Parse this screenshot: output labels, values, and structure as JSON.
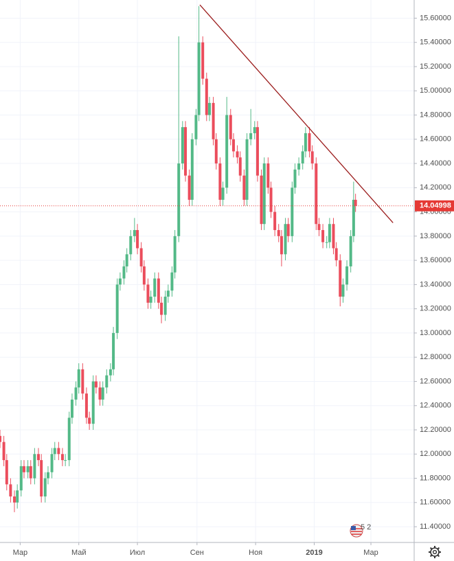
{
  "chart_data": {
    "type": "candlestick",
    "x": [
      -21,
      -17,
      -14,
      -10,
      -6,
      -3,
      1,
      4,
      8,
      11,
      15,
      19,
      22,
      26,
      29,
      33,
      36,
      40,
      44,
      47,
      51,
      54,
      58,
      61,
      65,
      69,
      72,
      76,
      79,
      83,
      86,
      90,
      94,
      97,
      101,
      104,
      108,
      111,
      115,
      119,
      122,
      126,
      129,
      133,
      136,
      140,
      144,
      147,
      151,
      154,
      158,
      161,
      165,
      169,
      172,
      176,
      179,
      183,
      186,
      190,
      194,
      197,
      201,
      204,
      208,
      211,
      215,
      219,
      222,
      226,
      229,
      233,
      236,
      240,
      244,
      247,
      251,
      254,
      258,
      261,
      265,
      269,
      272,
      276,
      279,
      283,
      286,
      290,
      294,
      297,
      301,
      304,
      308,
      311,
      315,
      319,
      322,
      326,
      329,
      333,
      336,
      340,
      344,
      347,
      349
    ],
    "open": [
      12.15,
      12.1,
      11.95,
      11.75,
      11.65,
      11.6,
      11.7,
      11.9,
      11.85,
      11.9,
      11.8,
      12.0,
      11.95,
      11.65,
      11.8,
      11.85,
      12.0,
      12.05,
      12.0,
      11.95,
      11.95,
      12.3,
      12.45,
      12.55,
      12.7,
      12.5,
      12.3,
      12.25,
      12.6,
      12.55,
      12.45,
      12.55,
      12.65,
      12.7,
      13.0,
      13.4,
      13.45,
      13.55,
      13.65,
      13.8,
      13.85,
      13.7,
      13.55,
      13.4,
      13.25,
      13.3,
      13.45,
      13.25,
      13.15,
      13.3,
      13.35,
      13.5,
      13.8,
      14.4,
      14.7,
      14.3,
      14.1,
      14.6,
      14.8,
      15.4,
      15.1,
      14.8,
      14.9,
      14.6,
      14.4,
      14.1,
      14.2,
      14.8,
      14.6,
      14.5,
      14.45,
      14.3,
      14.1,
      14.6,
      14.65,
      14.7,
      14.3,
      13.9,
      14.4,
      14.2,
      14.0,
      13.85,
      13.8,
      13.65,
      13.9,
      13.8,
      14.2,
      14.35,
      14.4,
      14.5,
      14.65,
      14.5,
      14.4,
      13.9,
      13.85,
      13.75,
      13.75,
      13.9,
      13.7,
      13.6,
      13.3,
      13.4,
      13.55,
      13.8,
      14.1
    ],
    "high": [
      12.2,
      12.15,
      12.0,
      11.8,
      11.7,
      11.75,
      11.95,
      11.95,
      11.95,
      11.95,
      12.05,
      12.05,
      12.0,
      11.85,
      11.9,
      12.05,
      12.1,
      12.1,
      12.05,
      12.0,
      12.35,
      12.5,
      12.6,
      12.75,
      12.75,
      12.55,
      12.35,
      12.65,
      12.65,
      12.6,
      12.6,
      12.7,
      12.75,
      13.05,
      13.45,
      13.5,
      13.6,
      13.7,
      13.85,
      13.95,
      13.9,
      13.75,
      13.6,
      13.45,
      13.35,
      13.5,
      13.5,
      13.3,
      13.35,
      13.4,
      13.55,
      13.85,
      15.45,
      14.75,
      14.75,
      14.35,
      14.65,
      14.85,
      15.7,
      15.45,
      15.15,
      14.95,
      14.95,
      14.65,
      14.45,
      14.25,
      14.95,
      14.85,
      14.65,
      14.55,
      14.5,
      14.35,
      14.65,
      14.85,
      14.75,
      14.75,
      14.35,
      14.45,
      14.45,
      14.25,
      14.05,
      13.9,
      13.85,
      13.95,
      13.95,
      14.25,
      14.4,
      14.45,
      14.55,
      14.7,
      14.7,
      14.55,
      14.45,
      13.95,
      13.9,
      13.8,
      13.95,
      13.95,
      13.75,
      13.65,
      13.45,
      13.6,
      13.85,
      14.25,
      14.15
    ],
    "low": [
      12.05,
      11.9,
      11.7,
      11.6,
      11.52,
      11.55,
      11.65,
      11.8,
      11.8,
      11.75,
      11.75,
      11.9,
      11.6,
      11.6,
      11.75,
      11.8,
      11.95,
      11.95,
      11.9,
      11.9,
      11.9,
      12.25,
      12.4,
      12.5,
      12.45,
      12.25,
      12.2,
      12.2,
      12.5,
      12.4,
      12.4,
      12.5,
      12.6,
      12.65,
      12.95,
      13.35,
      13.4,
      13.5,
      13.6,
      13.75,
      13.65,
      13.5,
      13.35,
      13.2,
      13.2,
      13.25,
      13.2,
      13.08,
      13.1,
      13.25,
      13.3,
      13.45,
      13.75,
      14.35,
      14.25,
      14.05,
      14.05,
      14.55,
      14.75,
      15.05,
      14.75,
      14.75,
      14.55,
      14.35,
      14.05,
      14.05,
      14.15,
      14.55,
      14.45,
      14.4,
      14.25,
      14.05,
      14.05,
      14.55,
      14.6,
      14.25,
      13.85,
      13.85,
      14.15,
      13.95,
      13.8,
      13.75,
      13.55,
      13.6,
      13.75,
      13.75,
      14.15,
      14.3,
      14.35,
      14.45,
      14.45,
      14.35,
      13.85,
      13.8,
      13.7,
      13.7,
      13.7,
      13.65,
      13.55,
      13.22,
      13.25,
      13.35,
      13.5,
      13.75,
      14.0
    ],
    "close": [
      12.1,
      11.95,
      11.75,
      11.65,
      11.6,
      11.7,
      11.9,
      11.85,
      11.9,
      11.8,
      12.0,
      11.95,
      11.65,
      11.8,
      11.85,
      12.0,
      12.05,
      12.0,
      11.95,
      11.95,
      12.3,
      12.45,
      12.55,
      12.7,
      12.5,
      12.3,
      12.25,
      12.6,
      12.55,
      12.45,
      12.55,
      12.65,
      12.7,
      13.0,
      13.4,
      13.45,
      13.55,
      13.65,
      13.8,
      13.85,
      13.7,
      13.55,
      13.4,
      13.25,
      13.3,
      13.45,
      13.25,
      13.15,
      13.3,
      13.35,
      13.5,
      13.8,
      14.4,
      14.7,
      14.3,
      14.1,
      14.6,
      14.8,
      15.4,
      15.1,
      14.8,
      14.9,
      14.6,
      14.4,
      14.1,
      14.2,
      14.8,
      14.6,
      14.5,
      14.45,
      14.3,
      14.1,
      14.6,
      14.65,
      14.7,
      14.3,
      13.9,
      14.4,
      14.2,
      14.0,
      13.85,
      13.8,
      13.65,
      13.9,
      13.8,
      14.2,
      14.35,
      14.4,
      14.5,
      14.65,
      14.5,
      14.4,
      13.9,
      13.85,
      13.75,
      13.75,
      13.9,
      13.7,
      13.6,
      13.3,
      13.4,
      13.55,
      13.8,
      14.1,
      14.05
    ],
    "up_color": "#53b987",
    "down_color": "#eb4d5c",
    "trendline": {
      "x": [
        187,
        388
      ],
      "y": [
        15.71,
        13.91
      ],
      "color": "#9b1c1c"
    },
    "last_price": {
      "value": 14.04998,
      "color": "#e53935"
    },
    "badge": "5 2",
    "xlim": [
      -21,
      410
    ],
    "ylim": [
      11.27,
      15.75
    ],
    "xticks": [
      {
        "value": 0,
        "label": "Мар"
      },
      {
        "value": 61,
        "label": "Май"
      },
      {
        "value": 122,
        "label": "Июл"
      },
      {
        "value": 184,
        "label": "Сен"
      },
      {
        "value": 245,
        "label": "Ноя"
      },
      {
        "value": 306,
        "label": "2019"
      },
      {
        "value": 365,
        "label": "Мар"
      }
    ],
    "yticks": [
      {
        "value": 11.4,
        "label": "11.40000"
      },
      {
        "value": 11.6,
        "label": "11.60000"
      },
      {
        "value": 11.8,
        "label": "11.80000"
      },
      {
        "value": 12.0,
        "label": "12.00000"
      },
      {
        "value": 12.2,
        "label": "12.20000"
      },
      {
        "value": 12.4,
        "label": "12.40000"
      },
      {
        "value": 12.6,
        "label": "12.60000"
      },
      {
        "value": 12.8,
        "label": "12.80000"
      },
      {
        "value": 13.0,
        "label": "13.00000"
      },
      {
        "value": 13.2,
        "label": "13.20000"
      },
      {
        "value": 13.4,
        "label": "13.40000"
      },
      {
        "value": 13.6,
        "label": "13.60000"
      },
      {
        "value": 13.8,
        "label": "13.80000"
      },
      {
        "value": 14.0,
        "label": "14.00000"
      },
      {
        "value": 14.2,
        "label": "14.20000"
      },
      {
        "value": 14.4,
        "label": "14.40000"
      },
      {
        "value": 14.6,
        "label": "14.60000"
      },
      {
        "value": 14.8,
        "label": "14.80000"
      },
      {
        "value": 15.0,
        "label": "15.00000"
      },
      {
        "value": 15.2,
        "label": "15.20000"
      },
      {
        "value": 15.4,
        "label": "15.40000"
      },
      {
        "value": 15.6,
        "label": "15.60000"
      }
    ],
    "grid": true
  }
}
